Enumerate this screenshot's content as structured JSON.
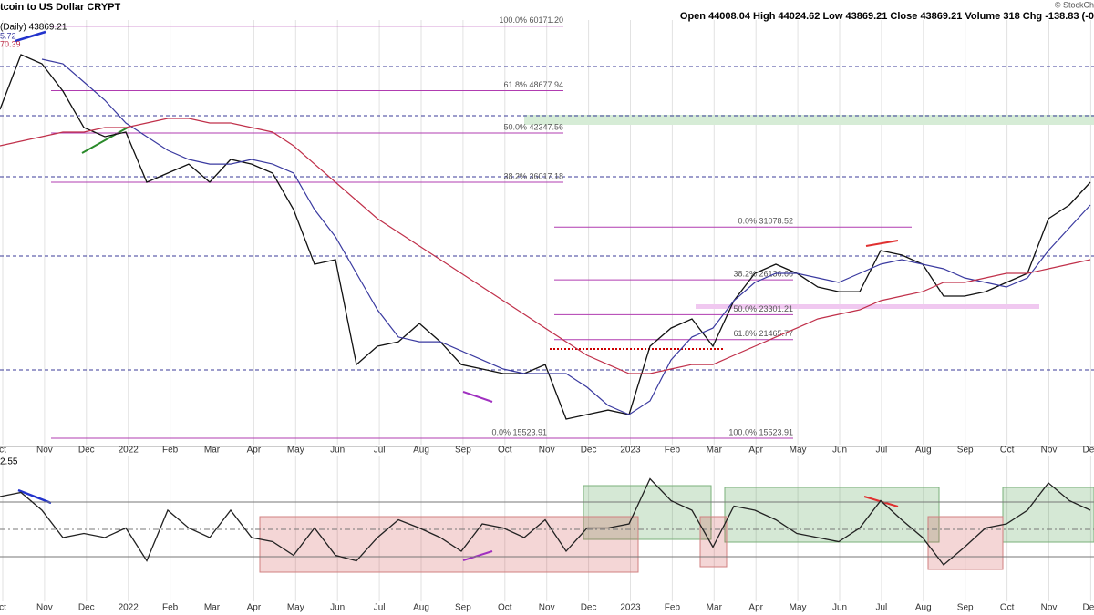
{
  "chart_data": [
    {
      "type": "line",
      "title": "tcoin to US Dollar CRYPT",
      "quote": "Open 44008.04 High 44024.62 Low 43869.21 Close 43869.21 Volume 318 Chg -138.83 (-0",
      "price_label": "(Daily) 43869.21",
      "indicators": [
        "5.72",
        "70.39"
      ],
      "watermark": "© StockCh",
      "month_labels": [
        "ct",
        "Nov",
        "Dec",
        "2022",
        "Feb",
        "Mar",
        "Apr",
        "May",
        "Jun",
        "Jul",
        "Aug",
        "Sep",
        "Oct",
        "Nov",
        "Dec",
        "2023",
        "Feb",
        "Mar",
        "Apr",
        "May",
        "Jun",
        "Jul",
        "Aug",
        "Sep",
        "Oct",
        "Nov",
        "Dec"
      ],
      "log": true,
      "ylim": [
        15110,
        65580
      ],
      "series": [
        {
          "color": "#111111",
          "values": [
            45770,
            54790,
            53170,
            48600,
            43110,
            41840,
            42470,
            36020,
            37120,
            38240,
            36020,
            38820,
            38240,
            37120,
            32930,
            27510,
            27920,
            19780,
            21010,
            21320,
            22640,
            21320,
            19780,
            19490,
            19200,
            19200,
            19780,
            16530,
            16780,
            17030,
            16780,
            21010,
            22300,
            22980,
            21010,
            24400,
            26700,
            27510,
            26700,
            25520,
            25140,
            25140,
            28770,
            28350,
            27510,
            24770,
            24770,
            25140,
            25910,
            26700,
            31950,
            33420,
            36020
          ]
        },
        {
          "color": "#3a3aa0",
          "values": [
            null,
            null,
            53970,
            53170,
            50080,
            47170,
            43760,
            41840,
            40000,
            38820,
            38240,
            38240,
            38820,
            38240,
            37120,
            32930,
            30100,
            26700,
            23680,
            21650,
            21320,
            21320,
            20690,
            20080,
            19490,
            19200,
            19200,
            19200,
            18360,
            17290,
            16780,
            17550,
            20080,
            21650,
            22300,
            24400,
            25910,
            26700,
            26700,
            26300,
            25910,
            26700,
            27510,
            27920,
            27510,
            27100,
            26300,
            25910,
            25520,
            26300,
            28770,
            31010,
            33420
          ]
        },
        {
          "color": "#c0304a",
          "values": [
            40610,
            41220,
            41840,
            42470,
            42470,
            43110,
            43110,
            43760,
            44420,
            44420,
            43760,
            43760,
            43110,
            42470,
            40610,
            38240,
            36020,
            33930,
            31950,
            30550,
            29210,
            27920,
            26700,
            25520,
            24400,
            23330,
            22300,
            21320,
            20390,
            19780,
            19200,
            19200,
            19490,
            19780,
            19780,
            20390,
            21010,
            21650,
            22300,
            22980,
            23330,
            23680,
            24400,
            24770,
            25140,
            25910,
            25910,
            26300,
            26700,
            26700,
            27100,
            27510,
            27920
          ]
        }
      ],
      "levels": [
        {
          "label": "100.0% 60171.20",
          "value": 60171.2
        },
        {
          "label": "61.8% 48677.94",
          "value": 48677.94
        },
        {
          "label": "50.0% 42347.56",
          "value": 42347.56
        },
        {
          "label": "38.2% 36017.18",
          "value": 36017.18
        },
        {
          "label": "0.0% 31078.52",
          "value": 31078.52
        },
        {
          "label": "38.2% 26136.66",
          "value": 26136.66
        },
        {
          "label": "50.0% 23301.21",
          "value": 23301.21
        },
        {
          "label": "61.8% 21465.77",
          "value": 21465.77
        },
        {
          "label": "0.0% 15523.91",
          "value": 15523.91
        },
        {
          "label": "100.0% 15523.91",
          "value": 15523.91
        }
      ]
    },
    {
      "type": "line",
      "title": "2.55",
      "ylim": [
        0,
        100
      ],
      "levels": [
        70,
        50,
        30
      ],
      "series": [
        {
          "color": "#222222",
          "values": [
            74,
            77,
            64,
            44,
            47,
            44,
            51,
            27,
            64,
            51,
            44,
            64,
            44,
            41,
            31,
            51,
            31,
            27,
            44,
            57,
            51,
            44,
            34,
            54,
            51,
            44,
            57,
            34,
            51,
            51,
            54,
            87,
            71,
            64,
            37,
            67,
            64,
            57,
            47,
            44,
            41,
            51,
            71,
            57,
            44,
            24,
            37,
            51,
            54,
            64,
            84,
            71,
            64
          ]
        }
      ]
    }
  ]
}
